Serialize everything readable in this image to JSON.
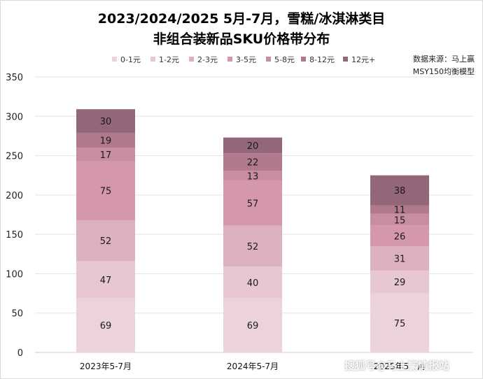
{
  "title_line1": "2023/2024/2025 5月-7月，雪糕/冰淇淋类目",
  "title_line2": "非组合装新品SKU价格带分布",
  "source_line1": "数据来源：马上赢",
  "source_line2": "MSY150均衡模型",
  "watermark": "搜狐号@马上赢情报站",
  "chart_data": {
    "type": "bar",
    "stacked": true,
    "categories": [
      "2023年5-7月",
      "2024年5-7月",
      "2025年5-7月"
    ],
    "series": [
      {
        "name": "0-1元",
        "color": "#ecd3db",
        "values": [
          69,
          69,
          75
        ]
      },
      {
        "name": "1-2元",
        "color": "#e7c7d1",
        "values": [
          47,
          40,
          29
        ]
      },
      {
        "name": "2-3元",
        "color": "#ddb0c0",
        "values": [
          52,
          52,
          31
        ]
      },
      {
        "name": "3-5元",
        "color": "#d597ab",
        "values": [
          75,
          57,
          26
        ]
      },
      {
        "name": "5-8元",
        "color": "#c98da1",
        "values": [
          17,
          13,
          15
        ]
      },
      {
        "name": "8-12元",
        "color": "#b07a8c",
        "values": [
          19,
          22,
          11
        ]
      },
      {
        "name": "12元+",
        "color": "#93667a",
        "values": [
          30,
          20,
          38
        ]
      }
    ],
    "ylim": [
      0,
      350
    ],
    "yticks": [
      0,
      50,
      100,
      150,
      200,
      250,
      300,
      350
    ],
    "grid": true,
    "legend_position": "top"
  }
}
